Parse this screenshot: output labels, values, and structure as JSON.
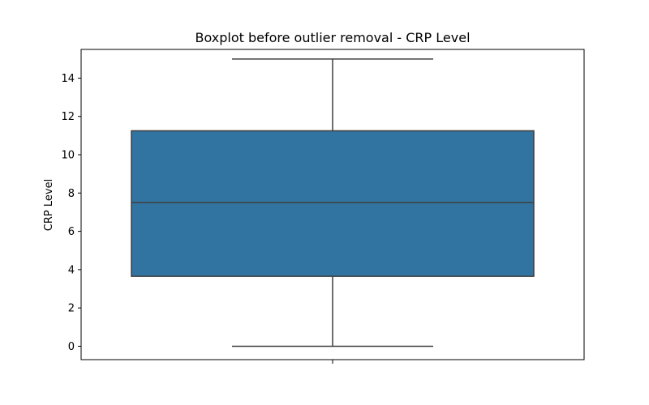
{
  "chart_data": {
    "type": "boxplot",
    "title": "Boxplot before outlier removal - CRP Level",
    "xlabel": "",
    "ylabel": "CRP Level",
    "ylim": [
      -0.7,
      15.5
    ],
    "yticks": [
      0,
      2,
      4,
      6,
      8,
      10,
      12,
      14
    ],
    "grid": false,
    "box": {
      "whisker_low": 0,
      "q1": 3.65,
      "median": 7.5,
      "q3": 11.25,
      "whisker_high": 15
    },
    "colors": {
      "box_fill": "#3274a1",
      "line": "#3f3f3f",
      "axes": "#000000"
    }
  }
}
